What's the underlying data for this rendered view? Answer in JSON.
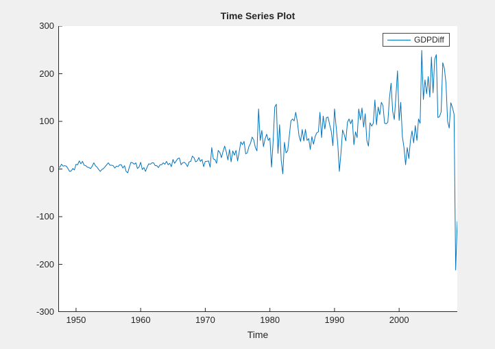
{
  "figure": {
    "background_color": "#f0f0f0",
    "plot_background_color": "#ffffff",
    "axis_color": "#262626",
    "text_color": "#262626"
  },
  "title": {
    "text": "Time Series Plot"
  },
  "x_axis": {
    "label": "Time",
    "tick_labels": [
      "1950",
      "1960",
      "1970",
      "1980",
      "1990",
      "2000"
    ]
  },
  "y_axis": {
    "label": "",
    "tick_labels": [
      "-300",
      "-200",
      "-100",
      "0",
      "100",
      "200",
      "300"
    ]
  },
  "legend": {
    "label": "GDPDiff",
    "line_color": "#0072BD",
    "position": "top-right"
  },
  "chart_data": {
    "type": "line",
    "title": "Time Series Plot",
    "xlabel": "Time",
    "ylabel": "",
    "xlim": [
      1947.25,
      2009.0
    ],
    "ylim": [
      -300,
      300
    ],
    "x_ticks": [
      1950,
      1960,
      1970,
      1980,
      1990,
      2000
    ],
    "y_ticks": [
      -300,
      -200,
      -100,
      0,
      100,
      200,
      300
    ],
    "grid": false,
    "legend_position": "top-right",
    "series": [
      {
        "name": "GDPDiff",
        "color": "#0072BD",
        "x_start": 1947.25,
        "x_step": 0.25,
        "x_unit": "year (quarterly)",
        "values": [
          3,
          4,
          10,
          6,
          7,
          6,
          1,
          -5,
          -4,
          1,
          -2,
          10,
          9,
          17,
          11,
          16,
          8,
          7,
          4,
          3,
          1,
          6,
          13,
          7,
          4,
          -1,
          -5,
          -1,
          1,
          5,
          9,
          13,
          8,
          8,
          7,
          2,
          6,
          5,
          9,
          9,
          2,
          7,
          -5,
          -8,
          4,
          14,
          13,
          10,
          13,
          1,
          4,
          14,
          -1,
          3,
          -5,
          4,
          11,
          10,
          13,
          13,
          7,
          7,
          3,
          9,
          9,
          13,
          10,
          16,
          9,
          12,
          5,
          20,
          12,
          17,
          22,
          23,
          9,
          13,
          14,
          11,
          5,
          15,
          16,
          27,
          24,
          15,
          17,
          24,
          16,
          20,
          5,
          16,
          16,
          17,
          4,
          45,
          21,
          20,
          12,
          39,
          35,
          24,
          37,
          48,
          36,
          19,
          41,
          15,
          38,
          29,
          39,
          17,
          36,
          57,
          51,
          58,
          32,
          34,
          47,
          54,
          67,
          61,
          45,
          38,
          126,
          60,
          81,
          47,
          63,
          73,
          60,
          65,
          4,
          57,
          130,
          136,
          33,
          93,
          18,
          -10,
          56,
          34,
          38,
          69,
          101,
          105,
          101,
          119,
          99,
          70,
          58,
          83,
          59,
          83,
          60,
          64,
          41,
          68,
          52,
          68,
          76,
          78,
          119,
          66,
          111,
          84,
          108,
          109,
          93,
          79,
          49,
          126,
          89,
          53,
          -5,
          34,
          82,
          72,
          59,
          98,
          105,
          95,
          104,
          51,
          78,
          66,
          126,
          103,
          128,
          88,
          116,
          60,
          48,
          97,
          90,
          96,
          145,
          93,
          130,
          114,
          140,
          133,
          96,
          95,
          98,
          149,
          180,
          121,
          104,
          153,
          206,
          102,
          140,
          68,
          45,
          9,
          45,
          22,
          60,
          80,
          55,
          91,
          60,
          105,
          96,
          249,
          146,
          187,
          158,
          194,
          151,
          235,
          160,
          230,
          240,
          108,
          110,
          120,
          223,
          211,
          180,
          100,
          86,
          139,
          129,
          115,
          -212,
          -110
        ]
      }
    ]
  }
}
